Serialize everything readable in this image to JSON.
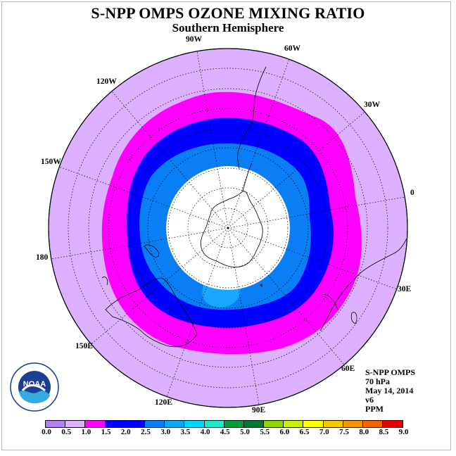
{
  "title": "S-NPP OMPS OZONE MIXING RATIO",
  "subtitle": "Southern Hemisphere",
  "longitudes": [
    "90W",
    "60W",
    "30W",
    "0",
    "30E",
    "60E",
    "90E",
    "120E",
    "150E",
    "180",
    "150W",
    "120W"
  ],
  "info": {
    "instrument": "S-NPP OMPS",
    "level": "70 hPa",
    "date": "May 14, 2014",
    "version": "v6",
    "units": "PPM"
  },
  "logo_text": "NOAA",
  "colorbar": {
    "ticks": [
      "0.0",
      "0.5",
      "1.0",
      "1.5",
      "2.0",
      "2.5",
      "3.0",
      "3.5",
      "4.0",
      "4.5",
      "5.0",
      "5.5",
      "6.0",
      "6.5",
      "7.0",
      "7.5",
      "8.0",
      "8.5",
      "9.0"
    ],
    "colors": [
      "#b37ff5",
      "#dcb1ff",
      "#ff00ff",
      "#0000ff",
      "#0000ff",
      "#0a7ff5",
      "#0aa8f5",
      "#00d4ff",
      "#1ee8c8",
      "#009b3c",
      "#007a32",
      "#8fd400",
      "#c8f000",
      "#ffff00",
      "#f5c800",
      "#f59600",
      "#f56400",
      "#e60000",
      "#8b5a3c"
    ]
  },
  "field_colors": {
    "background": "#dcb1ff",
    "ring_1_5": "#ff00ff",
    "ring_2_0": "#0000ff",
    "ring_2_5": "#0a7ff5",
    "ring_3_0": "#00a0ff",
    "core": "#ffffff"
  }
}
